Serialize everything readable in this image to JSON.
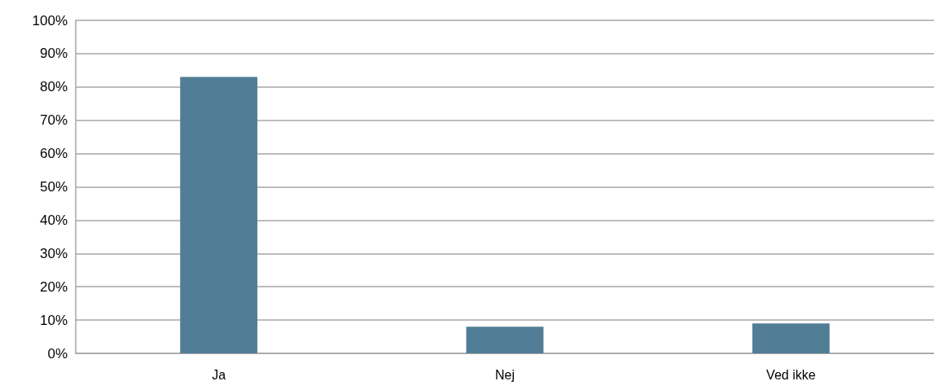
{
  "chart_data": {
    "type": "bar",
    "categories": [
      "Ja",
      "Nej",
      "Ved ikke"
    ],
    "values": [
      83,
      8,
      9
    ],
    "color": "#527d96",
    "ylim": [
      0,
      100
    ],
    "yticks": [
      {
        "value": 0,
        "label": "0%"
      },
      {
        "value": 10,
        "label": "10%"
      },
      {
        "value": 20,
        "label": "20%"
      },
      {
        "value": 30,
        "label": "30%"
      },
      {
        "value": 40,
        "label": "40%"
      },
      {
        "value": 50,
        "label": "50%"
      },
      {
        "value": 60,
        "label": "60%"
      },
      {
        "value": 70,
        "label": "70%"
      },
      {
        "value": 80,
        "label": "80%"
      },
      {
        "value": 90,
        "label": "90%"
      },
      {
        "value": 100,
        "label": "100%"
      }
    ],
    "grid": "y"
  }
}
